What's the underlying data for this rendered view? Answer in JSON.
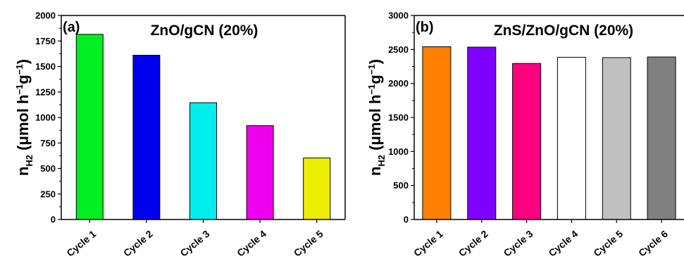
{
  "chart_data": [
    {
      "type": "bar",
      "panel_label": "(a)",
      "title": "ZnO/gCN (20%)",
      "ylabel": {
        "main": "n",
        "sub": "H2",
        "rest": " (μmol h",
        "sup1": "−1",
        "mid": "g",
        "sup2": "−1",
        "end": ")"
      },
      "xlabel": "",
      "categories": [
        "Cycle 1",
        "Cycle 2",
        "Cycle 3",
        "Cycle 4",
        "Cycle 5"
      ],
      "values": [
        1815,
        1610,
        1145,
        920,
        603
      ],
      "colors": [
        "#00ee22",
        "#0000ee",
        "#00eeee",
        "#ee00ee",
        "#eeee00"
      ],
      "ylim": [
        0,
        2000
      ],
      "yticks": [
        0,
        250,
        500,
        750,
        1000,
        1250,
        1500,
        1750,
        2000
      ],
      "grid": false,
      "legend": "none"
    },
    {
      "type": "bar",
      "panel_label": "(b)",
      "title": "ZnS/ZnO/gCN (20%)",
      "ylabel": {
        "main": "n",
        "sub": "H2",
        "rest": " (μmol h",
        "sup1": "−1",
        "mid": "g",
        "sup2": "−1",
        "end": ")"
      },
      "xlabel": "",
      "categories": [
        "Cycle 1",
        "Cycle 2",
        "Cycle 3",
        "Cycle 4",
        "Cycle 5",
        "Cycle 6"
      ],
      "values": [
        2540,
        2535,
        2295,
        2385,
        2380,
        2390
      ],
      "colors": [
        "#ff8000",
        "#8000ff",
        "#ff0080",
        "#ffffff",
        "#c0c0c0",
        "#808080"
      ],
      "ylim": [
        0,
        3000
      ],
      "yticks": [
        0,
        500,
        1000,
        1500,
        2000,
        2500,
        3000
      ],
      "grid": false,
      "legend": "none"
    }
  ]
}
